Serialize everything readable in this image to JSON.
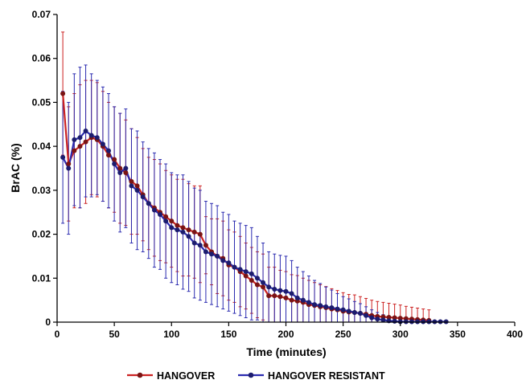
{
  "chart_data": {
    "type": "line",
    "xlabel": "Time (minutes)",
    "ylabel": "BrAC (%)",
    "xlim": [
      0,
      400
    ],
    "ylim": [
      0,
      0.07
    ],
    "x_ticks": [
      "0",
      "50",
      "100",
      "150",
      "200",
      "250",
      "300",
      "350",
      "400"
    ],
    "y_ticks": [
      "0",
      "0.01",
      "0.02",
      "0.03",
      "0.04",
      "0.05",
      "0.06",
      "0.07"
    ],
    "grid": false,
    "legend_position": "bottom",
    "series": [
      {
        "name": "HANGOVER",
        "color": "#cc2222",
        "marker_color": "#7a1414",
        "x": [
          5,
          10,
          15,
          20,
          25,
          30,
          35,
          40,
          45,
          50,
          55,
          60,
          65,
          70,
          75,
          80,
          85,
          90,
          95,
          100,
          105,
          110,
          115,
          120,
          125,
          130,
          135,
          140,
          145,
          150,
          155,
          160,
          165,
          170,
          175,
          180,
          185,
          190,
          195,
          200,
          205,
          210,
          215,
          220,
          225,
          230,
          235,
          240,
          245,
          250,
          255,
          260,
          265,
          270,
          275,
          280,
          285,
          290,
          295,
          300,
          305,
          310,
          315,
          320,
          325
        ],
        "y": [
          0.052,
          0.036,
          0.039,
          0.04,
          0.041,
          0.042,
          0.0415,
          0.04,
          0.038,
          0.037,
          0.035,
          0.034,
          0.032,
          0.031,
          0.029,
          0.027,
          0.026,
          0.025,
          0.024,
          0.023,
          0.022,
          0.0215,
          0.021,
          0.0205,
          0.02,
          0.0175,
          0.016,
          0.015,
          0.0145,
          0.013,
          0.0125,
          0.0115,
          0.0105,
          0.0095,
          0.0085,
          0.008,
          0.006,
          0.006,
          0.0058,
          0.0055,
          0.005,
          0.0048,
          0.0045,
          0.004,
          0.0038,
          0.0035,
          0.0033,
          0.003,
          0.0028,
          0.0025,
          0.0023,
          0.0022,
          0.002,
          0.0018,
          0.0015,
          0.0013,
          0.0012,
          0.0011,
          0.001,
          0.0009,
          0.0008,
          0.0007,
          0.0006,
          0.0005,
          0.0004
        ],
        "error": [
          0.014,
          0.013,
          0.013,
          0.014,
          0.014,
          0.013,
          0.013,
          0.0125,
          0.012,
          0.012,
          0.0125,
          0.012,
          0.012,
          0.011,
          0.0105,
          0.0105,
          0.011,
          0.011,
          0.0105,
          0.0105,
          0.0105,
          0.011,
          0.0105,
          0.0105,
          0.011,
          0.0065,
          0.0075,
          0.0085,
          0.0085,
          0.008,
          0.008,
          0.008,
          0.0075,
          0.0075,
          0.0075,
          0.0075,
          0.0065,
          0.0065,
          0.006,
          0.006,
          0.0058,
          0.0058,
          0.0055,
          0.0055,
          0.0052,
          0.005,
          0.0048,
          0.0046,
          0.0044,
          0.0042,
          0.004,
          0.004,
          0.0038,
          0.0036,
          0.0035,
          0.0034,
          0.0033,
          0.0032,
          0.0031,
          0.003,
          0.0028,
          0.0027,
          0.0026,
          0.0025,
          0.0024
        ]
      },
      {
        "name": "HANGOVER RESISTANT",
        "color": "#2b2bb0",
        "marker_color": "#1c1c6e",
        "x": [
          5,
          10,
          15,
          20,
          25,
          30,
          35,
          40,
          45,
          50,
          55,
          60,
          65,
          70,
          75,
          80,
          85,
          90,
          95,
          100,
          105,
          110,
          115,
          120,
          125,
          130,
          135,
          140,
          145,
          150,
          155,
          160,
          165,
          170,
          175,
          180,
          185,
          190,
          195,
          200,
          205,
          210,
          215,
          220,
          225,
          230,
          235,
          240,
          245,
          250,
          255,
          260,
          265,
          270,
          275,
          280,
          285,
          290,
          295,
          300,
          305,
          310,
          315,
          320,
          325,
          330,
          335,
          340
        ],
        "y": [
          0.0375,
          0.035,
          0.0415,
          0.042,
          0.0435,
          0.0425,
          0.042,
          0.0405,
          0.039,
          0.036,
          0.034,
          0.035,
          0.031,
          0.03,
          0.0285,
          0.027,
          0.0255,
          0.0245,
          0.023,
          0.0215,
          0.021,
          0.0205,
          0.0195,
          0.018,
          0.0175,
          0.016,
          0.0155,
          0.015,
          0.014,
          0.0135,
          0.0125,
          0.012,
          0.0115,
          0.011,
          0.01,
          0.009,
          0.008,
          0.0075,
          0.0072,
          0.007,
          0.0065,
          0.0055,
          0.005,
          0.0045,
          0.004,
          0.0038,
          0.0035,
          0.0033,
          0.003,
          0.0028,
          0.0025,
          0.0022,
          0.002,
          0.0015,
          0.001,
          0.0007,
          0.0005,
          0.0003,
          0.0002,
          0.0001,
          0.0001,
          0.0001,
          0.0001,
          0.0001,
          0.0001,
          0.0001,
          0.0001,
          0.0001
        ],
        "error": [
          0.015,
          0.015,
          0.015,
          0.016,
          0.015,
          0.014,
          0.013,
          0.013,
          0.013,
          0.013,
          0.0135,
          0.0135,
          0.013,
          0.0135,
          0.0125,
          0.0125,
          0.013,
          0.0125,
          0.013,
          0.0125,
          0.0125,
          0.013,
          0.0125,
          0.0125,
          0.0125,
          0.0115,
          0.0115,
          0.0115,
          0.011,
          0.011,
          0.0105,
          0.0105,
          0.0105,
          0.0105,
          0.0095,
          0.009,
          0.008,
          0.008,
          0.008,
          0.008,
          0.0075,
          0.007,
          0.0065,
          0.006,
          0.0055,
          0.005,
          0.0045,
          0.004,
          0.0035,
          0.003,
          0.0028,
          0.0025,
          0.0022,
          0.002,
          0.0018,
          0.0015,
          0.0012,
          0.001,
          0.0008,
          0.0006,
          0.0005,
          0.0004,
          0.0003,
          0.0002,
          0.0002,
          0.0002,
          0.0001,
          0.0001
        ]
      }
    ]
  }
}
